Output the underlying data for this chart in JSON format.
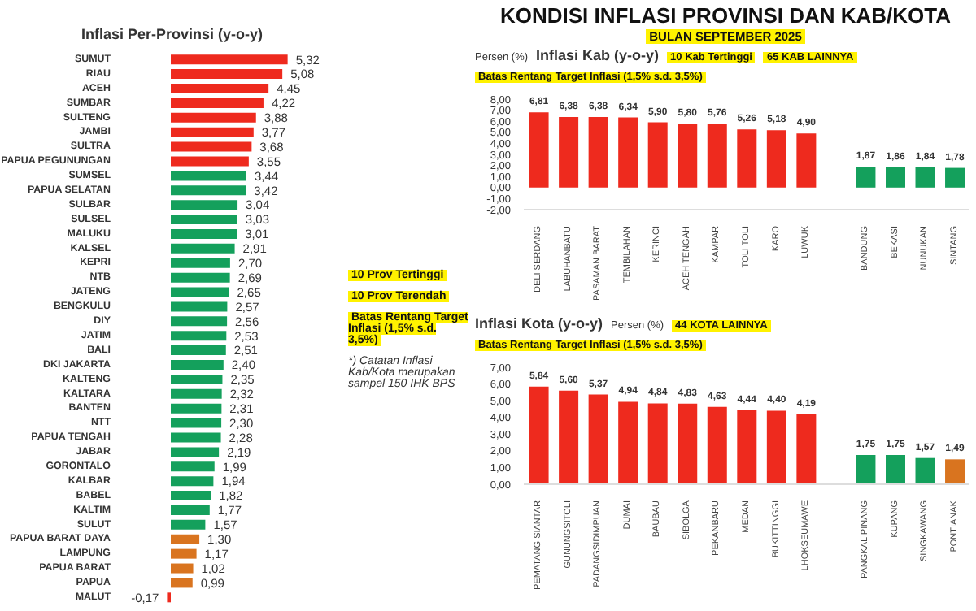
{
  "chart_data": [
    {
      "type": "bar",
      "orientation": "horizontal",
      "title": "Inflasi Per-Provinsi (y-o-y)",
      "tick_labels": "y",
      "annotations": [
        "10 Prov Tertinggi",
        "10 Prov Terendah",
        "Batas Rentang Target Inflasi (1,5% s.d. 3,5%)",
        "*) Catatan Inflasi Kab/Kota merupakan sampel 150 IHK BPS"
      ],
      "categories": [
        "SUMUT",
        "RIAU",
        "ACEH",
        "SUMBAR",
        "SULTENG",
        "JAMBI",
        "SULTRA",
        "PAPUA PEGUNUNGAN",
        "SUMSEL",
        "PAPUA SELATAN",
        "SULBAR",
        "SULSEL",
        "MALUKU",
        "KALSEL",
        "KEPRI",
        "NTB",
        "JATENG",
        "BENGKULU",
        "DIY",
        "JATIM",
        "BALI",
        "DKI JAKARTA",
        "KALTENG",
        "KALTARA",
        "BANTEN",
        "NTT",
        "PAPUA TENGAH",
        "JABAR",
        "GORONTALO",
        "KALBAR",
        "BABEL",
        "KALTIM",
        "SULUT",
        "PAPUA BARAT DAYA",
        "LAMPUNG",
        "PAPUA BARAT",
        "PAPUA",
        "MALUT"
      ],
      "values": [
        5.32,
        5.08,
        4.45,
        4.22,
        3.88,
        3.77,
        3.68,
        3.55,
        3.44,
        3.42,
        3.04,
        3.03,
        3.01,
        2.91,
        2.7,
        2.69,
        2.65,
        2.57,
        2.56,
        2.53,
        2.51,
        2.4,
        2.35,
        2.32,
        2.31,
        2.3,
        2.28,
        2.19,
        1.99,
        1.94,
        1.82,
        1.77,
        1.57,
        1.3,
        1.17,
        1.02,
        0.99,
        -0.17
      ],
      "value_labels": [
        "5,32",
        "5,08",
        "4,45",
        "4,22",
        "3,88",
        "3,77",
        "3,68",
        "3,55",
        "3,44",
        "3,42",
        "3,04",
        "3,03",
        "3,01",
        "2,91",
        "2,70",
        "2,69",
        "2,65",
        "2,57",
        "2,56",
        "2,53",
        "2,51",
        "2,40",
        "2,35",
        "2,32",
        "2,31",
        "2,30",
        "2,28",
        "2,19",
        "1,99",
        "1,94",
        "1,82",
        "1,77",
        "1,57",
        "1,30",
        "1,17",
        "1,02",
        "0,99",
        "-0,17"
      ],
      "colors": [
        "#ee2a1e",
        "#ee2a1e",
        "#ee2a1e",
        "#ee2a1e",
        "#ee2a1e",
        "#ee2a1e",
        "#ee2a1e",
        "#ee2a1e",
        "#14a05c",
        "#14a05c",
        "#14a05c",
        "#14a05c",
        "#14a05c",
        "#14a05c",
        "#14a05c",
        "#14a05c",
        "#14a05c",
        "#14a05c",
        "#14a05c",
        "#14a05c",
        "#14a05c",
        "#14a05c",
        "#14a05c",
        "#14a05c",
        "#14a05c",
        "#14a05c",
        "#14a05c",
        "#14a05c",
        "#14a05c",
        "#14a05c",
        "#14a05c",
        "#14a05c",
        "#14a05c",
        "#d9741f",
        "#d9741f",
        "#d9741f",
        "#d9741f",
        "#ee2a1e"
      ]
    },
    {
      "type": "bar",
      "title": "KONDISI INFLASI PROVINSI DAN KAB/KOTA",
      "subtitle": "BULAN SEPTEMBER 2025",
      "ylabel": "Persen (%)",
      "ylim": [
        -2,
        8
      ],
      "yticks": [
        {
          "value": -2,
          "label": "-2,00"
        },
        {
          "value": -1,
          "label": "-1,00"
        },
        {
          "value": 0,
          "label": "0,00"
        },
        {
          "value": 1,
          "label": "1,00"
        },
        {
          "value": 2,
          "label": "2,00"
        },
        {
          "value": 3,
          "label": "3,00"
        },
        {
          "value": 4,
          "label": "4,00"
        },
        {
          "value": 5,
          "label": "5,00"
        },
        {
          "value": 6,
          "label": "6,00"
        },
        {
          "value": 7,
          "label": "7,00"
        },
        {
          "value": 8,
          "label": "8,00"
        }
      ],
      "annotations": [
        "Inflasi Kab (y-o-y)",
        "10 Kab Tertinggi",
        "65 KAB LAINNYA",
        "Batas Rentang Target Inflasi (1,5% s.d. 3,5%)"
      ],
      "categories": [
        "DELI SERDANG",
        "LABUHANBATU",
        "PASAMAN BARAT",
        "TEMBILAHAN",
        "KERINCI",
        "ACEH TENGAH",
        "KAMPAR",
        "TOLI TOLI",
        "KARO",
        "LUWUK",
        null,
        "BANDUNG",
        "BEKASI",
        "NUNUKAN",
        "SINTANG"
      ],
      "values": [
        6.81,
        6.38,
        6.38,
        6.34,
        5.9,
        5.8,
        5.76,
        5.26,
        5.18,
        4.9,
        null,
        1.87,
        1.86,
        1.84,
        1.78
      ],
      "value_labels": [
        "6,81",
        "6,38",
        "6,38",
        "6,34",
        "5,90",
        "5,80",
        "5,76",
        "5,26",
        "5,18",
        "4,90",
        null,
        "1,87",
        "1,86",
        "1,84",
        "1,78"
      ],
      "colors": [
        "#ee2a1e",
        "#ee2a1e",
        "#ee2a1e",
        "#ee2a1e",
        "#ee2a1e",
        "#ee2a1e",
        "#ee2a1e",
        "#ee2a1e",
        "#ee2a1e",
        "#ee2a1e",
        null,
        "#14a05c",
        "#14a05c",
        "#14a05c",
        "#14a05c"
      ]
    },
    {
      "type": "bar",
      "title": "Inflasi Kota (y-o-y)",
      "ylabel": "Persen (%)",
      "ylim": [
        0,
        7
      ],
      "yticks": [
        {
          "value": 0,
          "label": "0,00"
        },
        {
          "value": 1,
          "label": "1,00"
        },
        {
          "value": 2,
          "label": "2,00"
        },
        {
          "value": 3,
          "label": "3,00"
        },
        {
          "value": 4,
          "label": "4,00"
        },
        {
          "value": 5,
          "label": "5,00"
        },
        {
          "value": 6,
          "label": "6,00"
        },
        {
          "value": 7,
          "label": "7,00"
        }
      ],
      "annotations": [
        "44 KOTA LAINNYA",
        "Batas Rentang Target Inflasi (1,5% s.d. 3,5%)"
      ],
      "categories": [
        "PEMATANG SIANTAR",
        "GUNUNGSITOLI",
        "PADANGSIDIMPUAN",
        "DUMAI",
        "BAUBAU",
        "SIBOLGA",
        "PEKANBARU",
        "MEDAN",
        "BUKITTINGGI",
        "LHOKSEUMAWE",
        null,
        "PANGKAL PINANG",
        "KUPANG",
        "SINGKAWANG",
        "PONTIANAK"
      ],
      "values": [
        5.84,
        5.6,
        5.37,
        4.94,
        4.84,
        4.83,
        4.63,
        4.44,
        4.4,
        4.19,
        null,
        1.75,
        1.75,
        1.57,
        1.49
      ],
      "value_labels": [
        "5,84",
        "5,60",
        "5,37",
        "4,94",
        "4,84",
        "4,83",
        "4,63",
        "4,44",
        "4,40",
        "4,19",
        null,
        "1,75",
        "1,75",
        "1,57",
        "1,49"
      ],
      "colors": [
        "#ee2a1e",
        "#ee2a1e",
        "#ee2a1e",
        "#ee2a1e",
        "#ee2a1e",
        "#ee2a1e",
        "#ee2a1e",
        "#ee2a1e",
        "#ee2a1e",
        "#ee2a1e",
        null,
        "#14a05c",
        "#14a05c",
        "#14a05c",
        "#d9741f"
      ]
    }
  ]
}
